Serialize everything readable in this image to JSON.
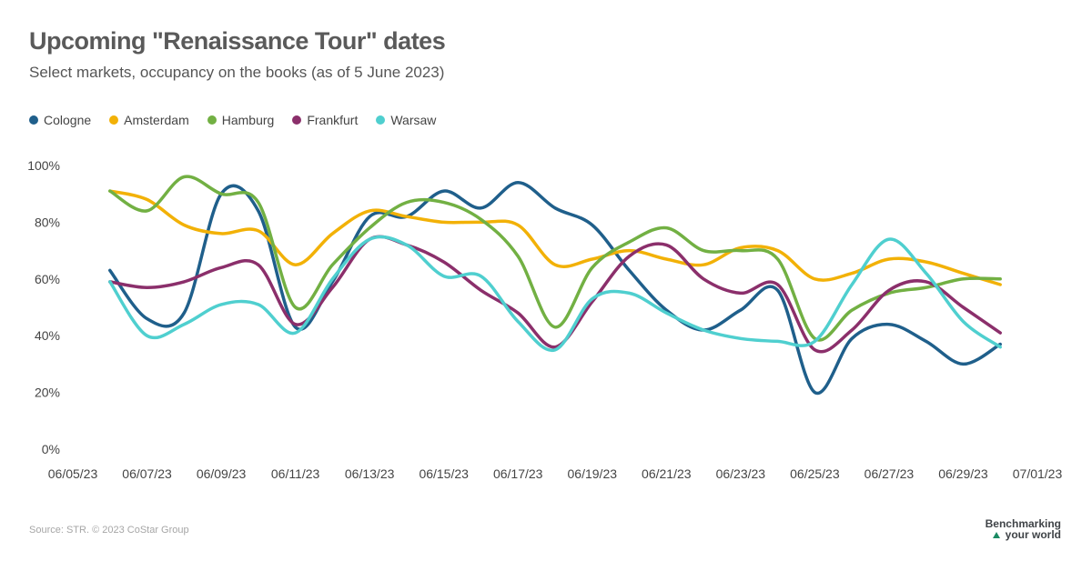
{
  "header": {
    "title": "Upcoming \"Renaissance Tour\" dates",
    "subtitle": "Select markets, occupancy on the books (as of 5 June 2023)"
  },
  "footer": {
    "source": "Source: STR. © 2023 CoStar Group",
    "brand_line1": "Benchmarking",
    "brand_line2": "your world"
  },
  "colors": {
    "Cologne": "#1f5f8b",
    "Amsterdam": "#f2b107",
    "Hamburg": "#72b043",
    "Frankfurt": "#8b2f6b",
    "Warsaw": "#4fcfcf"
  },
  "chart_data": {
    "type": "line",
    "title": "Upcoming \"Renaissance Tour\" dates",
    "subtitle": "Select markets, occupancy on the books (as of 5 June 2023)",
    "x_axis": {
      "type": "date",
      "min": "2023-06-05",
      "max": "2023-07-01",
      "ticks": [
        "06/05/23",
        "06/07/23",
        "06/09/23",
        "06/11/23",
        "06/13/23",
        "06/15/23",
        "06/17/23",
        "06/19/23",
        "06/21/23",
        "06/23/23",
        "06/25/23",
        "06/27/23",
        "06/29/23",
        "07/01/23"
      ]
    },
    "y_axis": {
      "min": 0,
      "max": 100,
      "ticks": [
        0,
        20,
        40,
        60,
        80,
        100
      ],
      "tick_labels": [
        "0%",
        "20%",
        "40%",
        "60%",
        "80%",
        "100%"
      ]
    },
    "grid": false,
    "legend_position": "top-left",
    "x": [
      "2023-06-06",
      "2023-06-07",
      "2023-06-08",
      "2023-06-09",
      "2023-06-10",
      "2023-06-11",
      "2023-06-12",
      "2023-06-13",
      "2023-06-14",
      "2023-06-15",
      "2023-06-16",
      "2023-06-17",
      "2023-06-18",
      "2023-06-19",
      "2023-06-20",
      "2023-06-21",
      "2023-06-22",
      "2023-06-23",
      "2023-06-24",
      "2023-06-25",
      "2023-06-26",
      "2023-06-27",
      "2023-06-28",
      "2023-06-29",
      "2023-06-30"
    ],
    "series": [
      {
        "name": "Cologne",
        "values": [
          63,
          46,
          48,
          90,
          84,
          43,
          59,
          82,
          82,
          91,
          85,
          94,
          85,
          79,
          63,
          49,
          42,
          49,
          56,
          20,
          39,
          44,
          38,
          30,
          37
        ]
      },
      {
        "name": "Amsterdam",
        "values": [
          91,
          88,
          79,
          76,
          77,
          65,
          76,
          84,
          82,
          80,
          80,
          79,
          65,
          67,
          70,
          67,
          65,
          71,
          70,
          60,
          62,
          67,
          66,
          62,
          58
        ]
      },
      {
        "name": "Hamburg",
        "values": [
          91,
          84,
          96,
          90,
          87,
          50,
          65,
          78,
          87,
          87,
          81,
          68,
          43,
          64,
          73,
          78,
          70,
          70,
          67,
          39,
          49,
          55,
          57,
          60,
          60
        ]
      },
      {
        "name": "Frankfurt",
        "values": [
          59,
          57,
          59,
          64,
          65,
          44,
          57,
          74,
          72,
          66,
          56,
          48,
          36,
          52,
          68,
          72,
          60,
          55,
          58,
          35,
          42,
          56,
          59,
          50,
          41
        ]
      },
      {
        "name": "Warsaw",
        "values": [
          59,
          40,
          44,
          51,
          51,
          41,
          60,
          74,
          72,
          61,
          61,
          45,
          35,
          53,
          55,
          48,
          42,
          39,
          38,
          38,
          58,
          74,
          62,
          45,
          36
        ]
      }
    ]
  }
}
